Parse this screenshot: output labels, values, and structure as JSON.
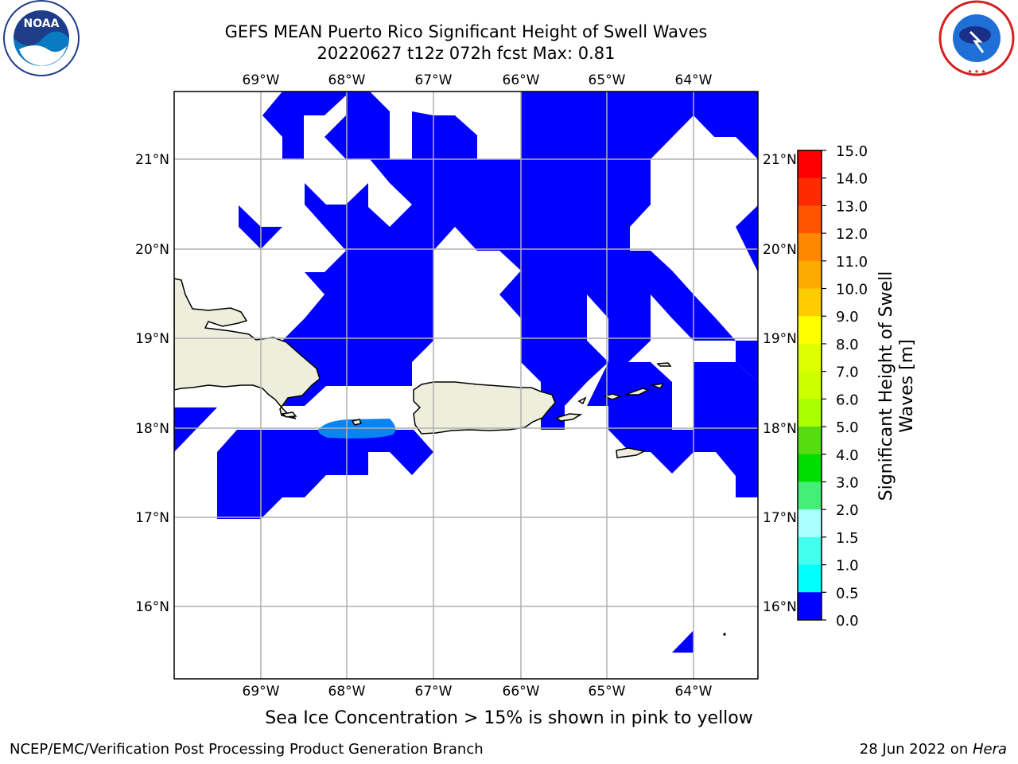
{
  "title_line1": "GEFS MEAN Puerto Rico Significant Height of Swell Waves",
  "title_line2": "20220627 t12z 072h fcst    Max: 0.81",
  "map": {
    "lon_labels": [
      "69°W",
      "68°W",
      "67°W",
      "66°W",
      "65°W",
      "64°W"
    ],
    "lat_labels": [
      "21°N",
      "20°N",
      "19°N",
      "18°N",
      "17°N",
      "16°N"
    ],
    "swell_color": "#0000ff",
    "swell_color_high": "#0a84f0",
    "land_color": "#eeeedd",
    "gridline_color": "#b0b0b0"
  },
  "colorbar": {
    "label": "Significant Height of Swell Waves [m]",
    "ticks": [
      "15.0",
      "14.0",
      "13.0",
      "12.0",
      "11.0",
      "10.0",
      "9.0",
      "8.0",
      "7.0",
      "6.0",
      "5.0",
      "4.0",
      "3.0",
      "2.0",
      "1.5",
      "1.0",
      "0.5",
      "0.0"
    ],
    "colors": [
      "#ff0000",
      "#ff2a00",
      "#ff5500",
      "#ff8800",
      "#ffaa00",
      "#ffcc00",
      "#ffff00",
      "#ddff00",
      "#ccff00",
      "#aaff00",
      "#55dd11",
      "#00dd00",
      "#44ee77",
      "#aaffff",
      "#44ffee",
      "#00ffff",
      "#0088ff",
      "#0000ff"
    ]
  },
  "logos": {
    "noaa_text": "NOAA",
    "noaa_ring_text": "NATIONAL OCEANIC AND ATMOSPHERIC ADMINISTRATION · U.S. DEPARTMENT OF COMMERCE",
    "nws_ring_text": "NATIONAL WEATHER SERVICE"
  },
  "ice_note": "Sea Ice Concentration > 15% is shown in pink to yellow",
  "credit": "NCEP/EMC/Verification Post Processing Product Generation Branch",
  "stamp_date": "28 Jun 2022 on ",
  "stamp_host": "Hera"
}
